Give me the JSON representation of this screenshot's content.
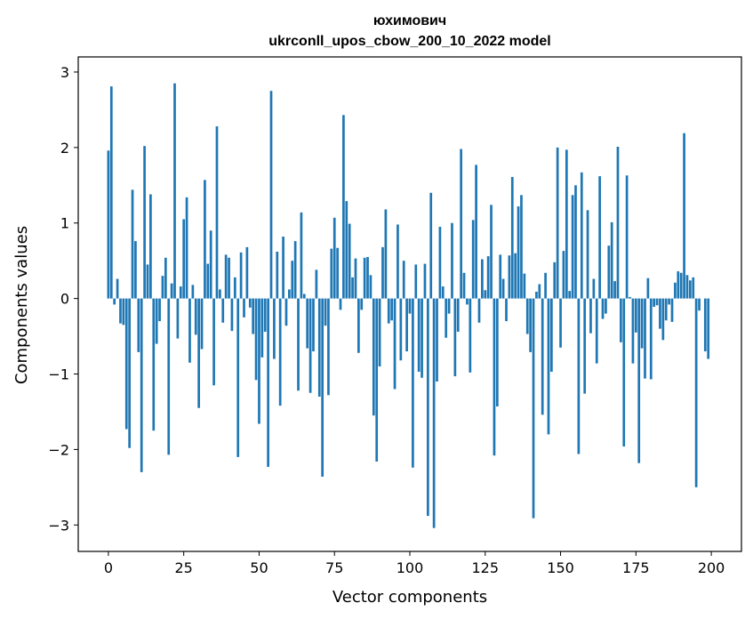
{
  "chart_data": {
    "type": "bar",
    "title": "юхимович",
    "subtitle": "ukrconll_upos_cbow_200_10_2022 model",
    "xlabel": "Vector components",
    "ylabel": "Components values",
    "xlim": [
      -10,
      210
    ],
    "ylim": [
      -3.35,
      3.2
    ],
    "xticks": [
      0,
      25,
      50,
      75,
      100,
      125,
      150,
      175,
      200
    ],
    "yticks": [
      -3,
      -2,
      -1,
      0,
      1,
      2,
      3
    ],
    "xtick_labels": [
      "0",
      "25",
      "50",
      "75",
      "100",
      "125",
      "150",
      "175",
      "200"
    ],
    "ytick_labels": [
      "−3",
      "−2",
      "−1",
      "0",
      "1",
      "2",
      "3"
    ],
    "grid": false,
    "bar_color": "#1f77b4",
    "values": [
      1.96,
      2.81,
      -0.08,
      0.26,
      -0.33,
      -0.35,
      -1.73,
      -1.98,
      1.44,
      0.76,
      -0.71,
      -2.3,
      2.02,
      0.45,
      1.38,
      -1.75,
      -0.6,
      -0.3,
      0.3,
      0.54,
      -2.07,
      0.2,
      2.85,
      -0.53,
      0.16,
      1.05,
      1.34,
      -0.85,
      0.18,
      -0.48,
      -1.45,
      -0.67,
      1.57,
      0.46,
      0.9,
      -1.15,
      2.28,
      0.12,
      -0.32,
      0.58,
      0.54,
      -0.43,
      0.28,
      -2.1,
      0.61,
      -0.25,
      0.68,
      -0.12,
      -0.47,
      -1.08,
      -1.66,
      -0.78,
      -0.44,
      -2.23,
      2.75,
      -0.8,
      0.62,
      -1.42,
      0.82,
      -0.36,
      0.12,
      0.5,
      0.76,
      -1.22,
      1.14,
      0.06,
      -0.66,
      -1.25,
      -0.7,
      0.38,
      -1.3,
      -2.36,
      -0.36,
      -1.28,
      0.66,
      1.07,
      0.67,
      -0.15,
      2.43,
      1.29,
      0.99,
      0.28,
      0.53,
      -0.72,
      -0.15,
      0.54,
      0.55,
      0.31,
      -1.55,
      -2.16,
      -0.9,
      0.68,
      1.18,
      -0.33,
      -0.29,
      -1.2,
      0.98,
      -0.82,
      0.5,
      -0.7,
      -0.2,
      -2.24,
      0.45,
      -0.97,
      -1.05,
      0.46,
      -2.88,
      1.4,
      -3.04,
      -1.1,
      0.95,
      0.16,
      -0.52,
      -0.2,
      1.0,
      -1.03,
      -0.44,
      1.98,
      0.34,
      -0.08,
      -0.98,
      1.04,
      1.77,
      -0.32,
      0.52,
      0.11,
      0.56,
      1.24,
      -2.08,
      -1.43,
      0.58,
      0.26,
      -0.3,
      0.57,
      1.61,
      0.6,
      1.22,
      1.37,
      0.33,
      -0.47,
      -0.71,
      -2.91,
      0.09,
      0.19,
      -1.54,
      0.34,
      -1.8,
      -0.97,
      0.48,
      2.0,
      -0.65,
      0.63,
      1.97,
      0.1,
      1.37,
      1.5,
      -2.06,
      1.67,
      -1.26,
      1.17,
      -0.46,
      0.26,
      -0.86,
      1.62,
      -0.27,
      -0.2,
      0.7,
      1.01,
      0.23,
      2.01,
      -0.58,
      -1.96,
      1.63,
      0.02,
      -0.86,
      -0.45,
      -2.18,
      -0.66,
      -1.06,
      0.27,
      -1.07,
      -0.11,
      -0.09,
      -0.4,
      -0.55,
      -0.29,
      -0.08,
      -0.31,
      0.21,
      0.36,
      0.34,
      2.19,
      0.31,
      0.24,
      0.28,
      -2.5,
      -0.16,
      0.0,
      -0.7,
      -0.8
    ]
  }
}
